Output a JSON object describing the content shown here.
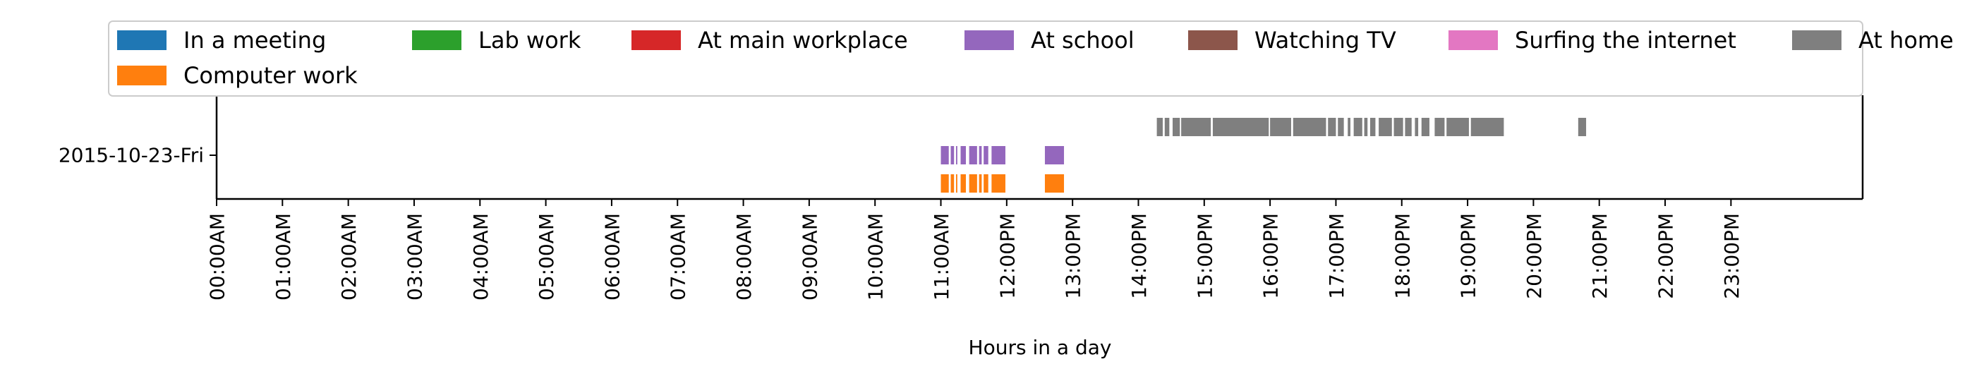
{
  "chart_data": {
    "type": "timeline",
    "title": "",
    "xlabel": "Hours in a day",
    "ylabel": "",
    "xlim_hours": [
      0,
      24
    ],
    "x_ticks": [
      "00:00AM",
      "01:00AM",
      "02:00AM",
      "03:00AM",
      "04:00AM",
      "05:00AM",
      "06:00AM",
      "07:00AM",
      "08:00AM",
      "09:00AM",
      "10:00AM",
      "11:00AM",
      "12:00PM",
      "13:00PM",
      "14:00PM",
      "15:00PM",
      "16:00PM",
      "17:00PM",
      "18:00PM",
      "19:00PM",
      "20:00PM",
      "21:00PM",
      "22:00PM",
      "23:00PM"
    ],
    "y_categories": [
      "2015-10-23-Fri"
    ],
    "grid": false,
    "legend_position": "top",
    "legend": [
      {
        "name": "In a meeting",
        "color": "#1f77b4"
      },
      {
        "name": "Lab work",
        "color": "#2ca02c"
      },
      {
        "name": "At main workplace",
        "color": "#d62728"
      },
      {
        "name": "At school",
        "color": "#9467bd"
      },
      {
        "name": "Watching TV",
        "color": "#8c564b"
      },
      {
        "name": "Surfing the internet",
        "color": "#e377c2"
      },
      {
        "name": "At home",
        "color": "#7f7f7f"
      },
      {
        "name": "Computer work",
        "color": "#ff7f0e"
      }
    ],
    "series": [
      {
        "name": "At home",
        "color": "#7f7f7f",
        "day": "2015-10-23-Fri",
        "lane": 1,
        "intervals": [
          [
            14.28,
            14.37
          ],
          [
            14.4,
            14.47
          ],
          [
            14.52,
            14.63
          ],
          [
            14.65,
            15.1
          ],
          [
            15.13,
            15.98
          ],
          [
            16.0,
            16.32
          ],
          [
            16.35,
            16.85
          ],
          [
            16.88,
            17.0
          ],
          [
            17.03,
            17.12
          ],
          [
            17.18,
            17.22
          ],
          [
            17.27,
            17.4
          ],
          [
            17.43,
            17.48
          ],
          [
            17.52,
            17.6
          ],
          [
            17.65,
            17.85
          ],
          [
            17.88,
            18.02
          ],
          [
            18.05,
            18.15
          ],
          [
            18.2,
            18.25
          ],
          [
            18.3,
            18.42
          ],
          [
            18.5,
            18.65
          ],
          [
            18.68,
            19.02
          ],
          [
            19.05,
            19.55
          ],
          [
            20.68,
            20.8
          ]
        ]
      },
      {
        "name": "At school",
        "color": "#9467bd",
        "day": "2015-10-23-Fri",
        "lane": 0,
        "intervals": [
          [
            11.0,
            11.12
          ],
          [
            11.15,
            11.2
          ],
          [
            11.23,
            11.25
          ],
          [
            11.3,
            11.38
          ],
          [
            11.43,
            11.55
          ],
          [
            11.58,
            11.62
          ],
          [
            11.65,
            11.72
          ],
          [
            11.77,
            11.98
          ],
          [
            12.58,
            12.87
          ]
        ]
      },
      {
        "name": "Computer work",
        "color": "#ff7f0e",
        "day": "2015-10-23-Fri",
        "lane": -1,
        "intervals": [
          [
            11.0,
            11.12
          ],
          [
            11.15,
            11.2
          ],
          [
            11.23,
            11.25
          ],
          [
            11.3,
            11.38
          ],
          [
            11.43,
            11.55
          ],
          [
            11.58,
            11.62
          ],
          [
            11.65,
            11.72
          ],
          [
            11.77,
            11.98
          ],
          [
            12.58,
            12.87
          ]
        ]
      }
    ]
  }
}
